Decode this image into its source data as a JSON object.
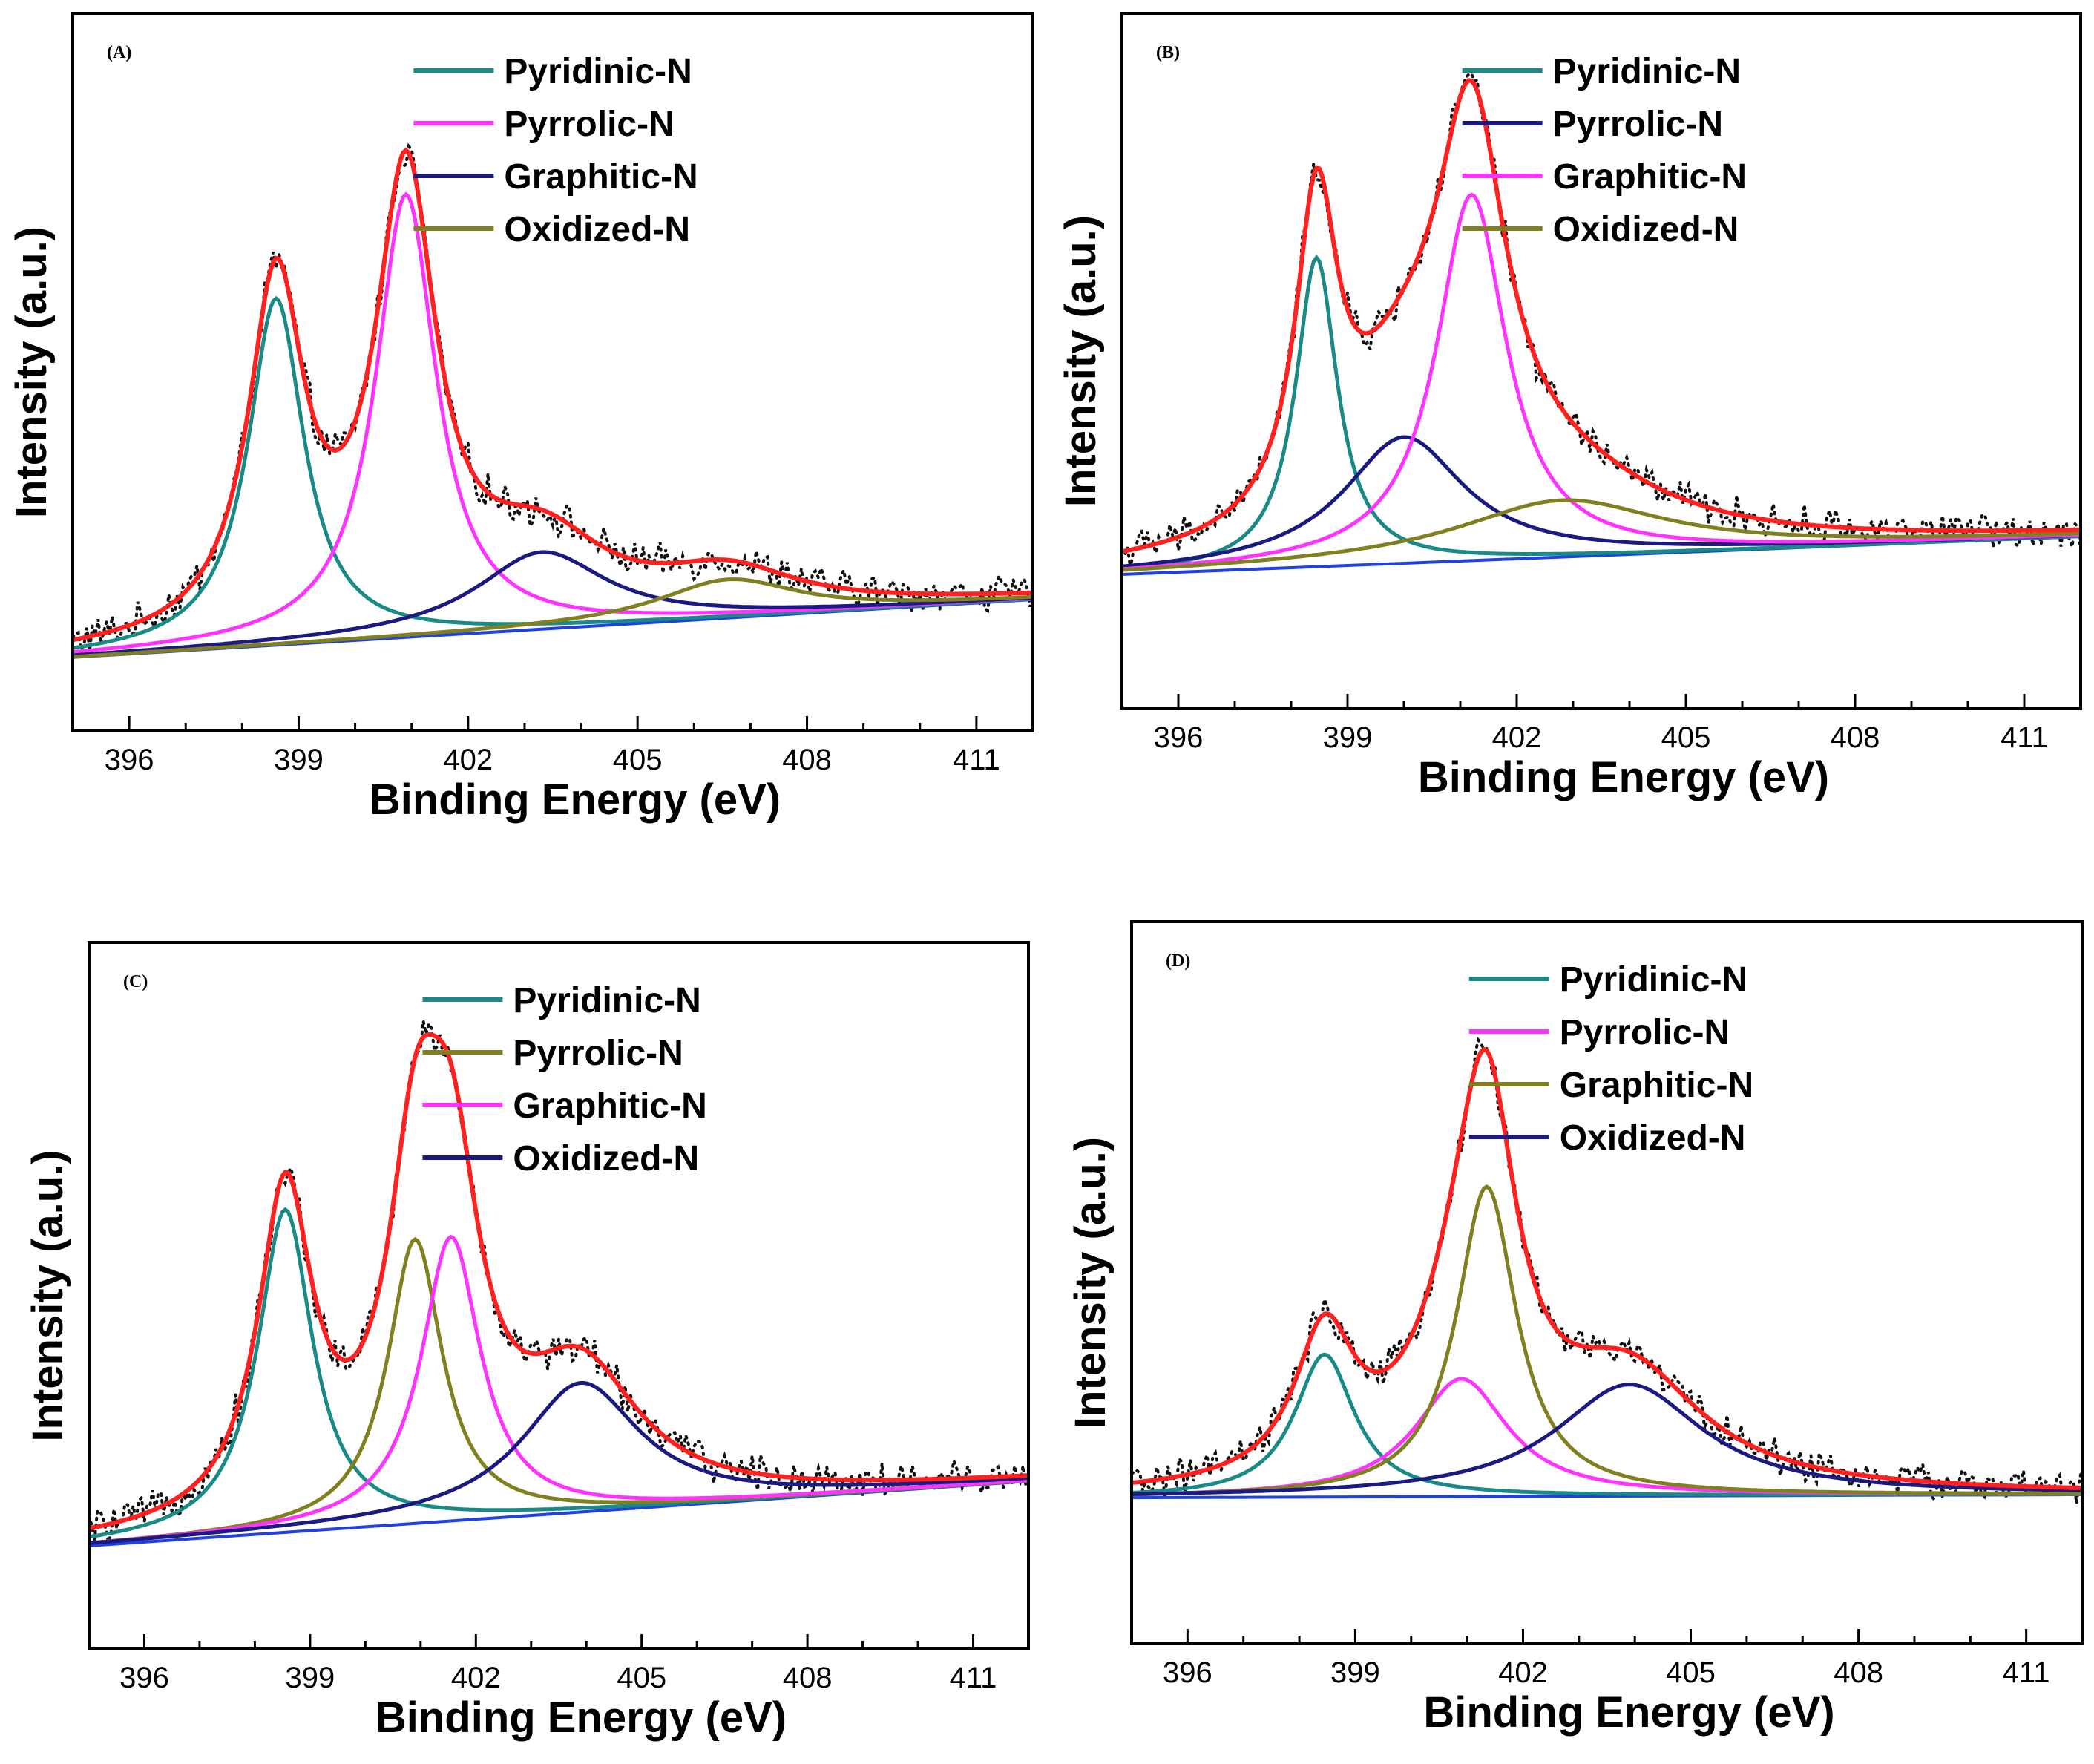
{
  "chart_data": [
    {
      "type": "line",
      "panel_label": "(A)",
      "xlabel": "Binding Energy (eV)",
      "ylabel": "Intensity (a.u.)",
      "xlim": [
        395,
        412
      ],
      "ylim": [
        0,
        1
      ],
      "x_ticks": [
        "396",
        "399",
        "402",
        "405",
        "408",
        "411"
      ],
      "x_tick_values": [
        396,
        399,
        402,
        405,
        408,
        411
      ],
      "legend_position": "top-right",
      "baseline": {
        "x": [
          395,
          412
        ],
        "y": [
          0.08,
          0.17
        ],
        "color": "#2040e0"
      },
      "series": [
        {
          "name": "Pyridinic-N",
          "color": "#1a8a87",
          "center": 398.6,
          "height": 0.54,
          "width": 1.2
        },
        {
          "name": "Pyrrolic-N",
          "color": "#ff33ff",
          "center": 400.9,
          "height": 0.69,
          "width": 1.3
        },
        {
          "name": "Graphitic-N",
          "color": "#1a1a80",
          "center": 403.3,
          "height": 0.12,
          "width": 2.8
        },
        {
          "name": "Oxidized-N",
          "color": "#808020",
          "center": 406.6,
          "height": 0.06,
          "width": 3.0
        }
      ],
      "envelope_color": "#ff2020",
      "raw_data_color": "#111111"
    },
    {
      "type": "line",
      "panel_label": "(B)",
      "xlabel": "Binding Energy (eV)",
      "ylabel": "Intensity (a.u.)",
      "xlim": [
        395,
        412
      ],
      "ylim": [
        0,
        1
      ],
      "x_ticks": [
        "396",
        "399",
        "402",
        "405",
        "408",
        "411"
      ],
      "x_tick_values": [
        396,
        399,
        402,
        405,
        408,
        411
      ],
      "legend_position": "top-right",
      "baseline": {
        "x": [
          395,
          412
        ],
        "y": [
          0.16,
          0.22
        ],
        "color": "#2040e0"
      },
      "series": [
        {
          "name": "Pyridinic-N",
          "color": "#1a8a87",
          "center": 398.45,
          "height": 0.49,
          "width": 0.9
        },
        {
          "name": "Pyrrolic-N",
          "color": "#1a1a80",
          "center": 400.0,
          "height": 0.2,
          "width": 2.6
        },
        {
          "name": "Graphitic-N",
          "color": "#ff33ff",
          "center": 401.2,
          "height": 0.58,
          "width": 1.5
        },
        {
          "name": "Oxidized-N",
          "color": "#808020",
          "center": 402.8,
          "height": 0.09,
          "width": 4.5
        }
      ],
      "envelope_color": "#ff2020",
      "raw_data_color": "#111111"
    },
    {
      "type": "line",
      "panel_label": "(C)",
      "xlabel": "Binding Energy (eV)",
      "ylabel": "Intensity (a.u.)",
      "xlim": [
        395,
        412
      ],
      "ylim": [
        0,
        1
      ],
      "x_ticks": [
        "396",
        "399",
        "402",
        "405",
        "408",
        "411"
      ],
      "x_tick_values": [
        396,
        399,
        402,
        405,
        408,
        411
      ],
      "legend_position": "top-right",
      "baseline": {
        "x": [
          395,
          412
        ],
        "y": [
          0.1,
          0.2
        ],
        "color": "#2040e0"
      },
      "series": [
        {
          "name": "Pyridinic-N",
          "color": "#1a8a87",
          "center": 398.55,
          "height": 0.5,
          "width": 1.2
        },
        {
          "name": "Pyrrolic-N",
          "color": "#808020",
          "center": 400.9,
          "height": 0.44,
          "width": 1.2
        },
        {
          "name": "Graphitic-N",
          "color": "#ff33ff",
          "center": 401.55,
          "height": 0.44,
          "width": 1.3
        },
        {
          "name": "Oxidized-N",
          "color": "#1a1a80",
          "center": 403.9,
          "height": 0.2,
          "width": 2.6
        }
      ],
      "envelope_color": "#ff2020",
      "raw_data_color": "#111111"
    },
    {
      "type": "line",
      "panel_label": "(D)",
      "xlabel": "Binding Energy (eV)",
      "ylabel": "Intensity (a.u.)",
      "xlim": [
        395,
        412
      ],
      "ylim": [
        0,
        1
      ],
      "x_ticks": [
        "396",
        "399",
        "402",
        "405",
        "408",
        "411"
      ],
      "x_tick_values": [
        396,
        399,
        402,
        405,
        408,
        411
      ],
      "legend_position": "top-right",
      "baseline": {
        "x": [
          395,
          412
        ],
        "y": [
          0.14,
          0.145
        ],
        "color": "#2040e0"
      },
      "series": [
        {
          "name": "Pyridinic-N",
          "color": "#1a8a87",
          "center": 398.45,
          "height": 0.23,
          "width": 1.3
        },
        {
          "name": "Pyrrolic-N",
          "color": "#ff33ff",
          "center": 400.9,
          "height": 0.19,
          "width": 2.0
        },
        {
          "name": "Graphitic-N",
          "color": "#808020",
          "center": 401.35,
          "height": 0.5,
          "width": 1.3
        },
        {
          "name": "Oxidized-N",
          "color": "#1a1a80",
          "center": 403.9,
          "height": 0.18,
          "width": 3.2
        }
      ],
      "envelope_color": "#ff2020",
      "raw_data_color": "#111111"
    }
  ]
}
